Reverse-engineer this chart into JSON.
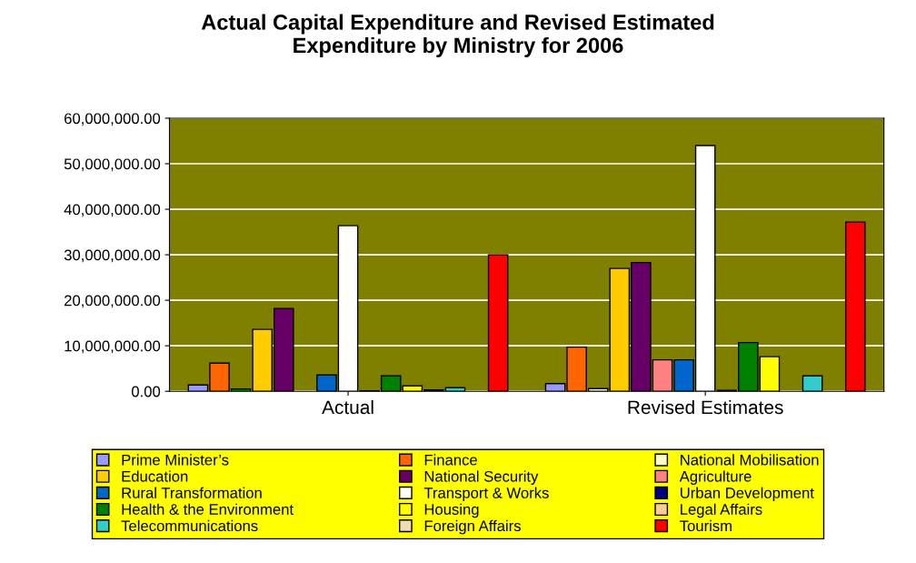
{
  "chart_data": {
    "type": "bar",
    "title": "Actual Capital Expenditure and Revised Estimated\nExpenditure by Ministry for 2006",
    "categories": [
      "Actual",
      "Revised Estimates"
    ],
    "series": [
      {
        "name": "Prime Minister’s",
        "color": "#9999ff",
        "values": [
          1400000,
          1700000
        ]
      },
      {
        "name": "Finance",
        "color": "#ff6600",
        "values": [
          6200000,
          9700000
        ]
      },
      {
        "name": "National Mobilisation",
        "color": "#ffffcc",
        "colors": [
          "#00cc00",
          "#ffffcc"
        ],
        "values": [
          500000,
          600000
        ]
      },
      {
        "name": "Education",
        "color": "#ffcc00",
        "values": [
          13600000,
          27000000
        ]
      },
      {
        "name": "National Security",
        "color": "#660066",
        "values": [
          18200000,
          28300000
        ]
      },
      {
        "name": "Agriculture",
        "color": "#ff8080",
        "values": [
          null,
          6900000
        ]
      },
      {
        "name": "Rural Transformation",
        "color": "#0066cc",
        "values": [
          3600000,
          6900000
        ]
      },
      {
        "name": "Transport & Works",
        "color": "#ffffff",
        "values": [
          36400000,
          54000000
        ]
      },
      {
        "name": "Urban Development",
        "color": "#000080",
        "values": [
          100000,
          200000
        ]
      },
      {
        "name": "Health & the Environment",
        "color": "#008000",
        "values": [
          3400000,
          10700000
        ]
      },
      {
        "name": "Housing",
        "color": "#ffff00",
        "values": [
          1200000,
          7600000
        ]
      },
      {
        "name": "Legal Affairs",
        "color": "#ffcc99",
        "values": [
          300000,
          null
        ]
      },
      {
        "name": "Telecommunications",
        "color": "#33cccc",
        "values": [
          800000,
          3400000
        ]
      },
      {
        "name": "Foreign Affairs",
        "color": "#f0dcb4",
        "values": [
          null,
          null
        ]
      },
      {
        "name": "Tourism",
        "color": "#ff0000",
        "values": [
          30000000,
          37200000
        ]
      }
    ],
    "ylim": [
      0,
      60000000
    ],
    "yticks": [
      {
        "value": 0,
        "label": "0.00"
      },
      {
        "value": 10000000,
        "label": "10,000,000.00"
      },
      {
        "value": 20000000,
        "label": "20,000,000.00"
      },
      {
        "value": 30000000,
        "label": "30,000,000.00"
      },
      {
        "value": 40000000,
        "label": "40,000,000.00"
      },
      {
        "value": 50000000,
        "label": "50,000,000.00"
      },
      {
        "value": 60000000,
        "label": "60,000,000.00"
      }
    ],
    "grid": "y",
    "legend": "bottom"
  }
}
